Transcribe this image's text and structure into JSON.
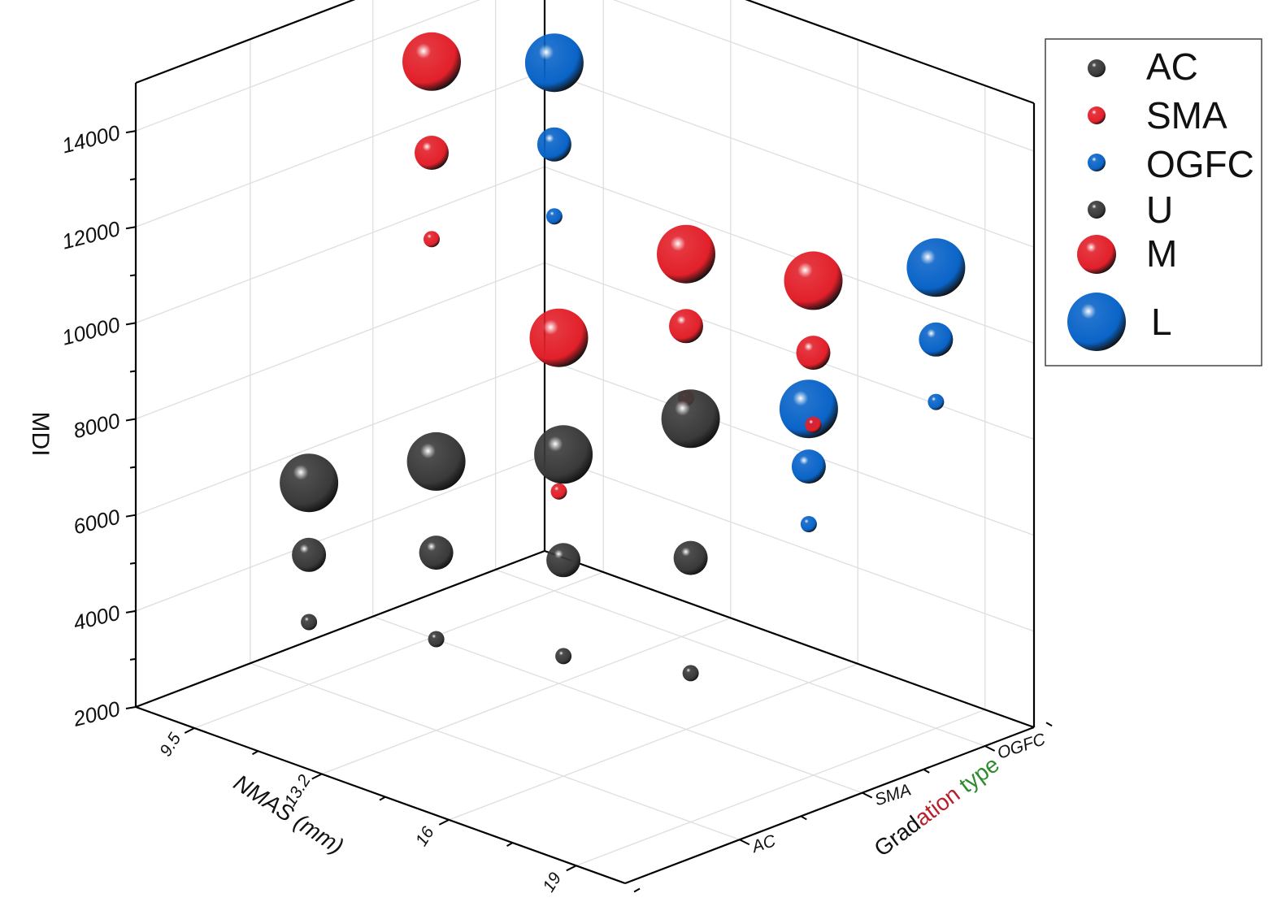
{
  "chart_data": {
    "type": "scatter",
    "subtype": "3d-bubble",
    "axes": {
      "x": {
        "label": "NMAS (mm)",
        "ticks": [
          "9.5",
          "13.2",
          "16",
          "19"
        ]
      },
      "y": {
        "label": "Gradation type",
        "label_parts": [
          {
            "text": "Grad",
            "color": "#111111"
          },
          {
            "text": "ation",
            "color": "#b8202a"
          },
          {
            "text": " ",
            "color": "#111111"
          },
          {
            "text": "type",
            "color": "#2e8b2e"
          }
        ],
        "ticks": [
          "AC",
          "SMA",
          "OGFC"
        ]
      },
      "z": {
        "label": "MDI",
        "ticks": [
          "2000",
          "4000",
          "6000",
          "8000",
          "10000",
          "12000",
          "14000"
        ],
        "range": [
          2000,
          15000
        ]
      }
    },
    "legend": {
      "placement": "right",
      "items": [
        {
          "label": "AC",
          "kind": "color",
          "color": "#3a3a3a"
        },
        {
          "label": "SMA",
          "kind": "color",
          "color": "#e2202a"
        },
        {
          "label": "OGFC",
          "kind": "color",
          "color": "#0a64c8"
        },
        {
          "label": "U",
          "kind": "size",
          "size": "U"
        },
        {
          "label": "M",
          "kind": "size",
          "size": "M"
        },
        {
          "label": "L",
          "kind": "size",
          "size": "L"
        }
      ]
    },
    "colors": {
      "AC": "#3a3a3a",
      "SMA": "#e2202a",
      "OGFC": "#0a64c8"
    },
    "points": [
      {
        "nmas": "9.5",
        "gradation": "AC",
        "size": "U",
        "mdi": 3300
      },
      {
        "nmas": "9.5",
        "gradation": "AC",
        "size": "M",
        "mdi": 4700
      },
      {
        "nmas": "9.5",
        "gradation": "AC",
        "size": "L",
        "mdi": 6200
      },
      {
        "nmas": "13.2",
        "gradation": "AC",
        "size": "U",
        "mdi": 3900
      },
      {
        "nmas": "13.2",
        "gradation": "AC",
        "size": "M",
        "mdi": 5700
      },
      {
        "nmas": "13.2",
        "gradation": "AC",
        "size": "L",
        "mdi": 7600
      },
      {
        "nmas": "13.2",
        "gradation": "SMA",
        "size": "U",
        "mdi": 6000
      },
      {
        "nmas": "13.2",
        "gradation": "SMA",
        "size": "L",
        "mdi": 9200
      },
      {
        "nmas": "16",
        "gradation": "AC",
        "size": "U",
        "mdi": 4500
      },
      {
        "nmas": "16",
        "gradation": "AC",
        "size": "M",
        "mdi": 6500
      },
      {
        "nmas": "16",
        "gradation": "AC",
        "size": "L",
        "mdi": 8700
      },
      {
        "nmas": "16",
        "gradation": "SMA",
        "size": "U",
        "mdi": 8900
      },
      {
        "nmas": "16",
        "gradation": "SMA",
        "size": "M",
        "mdi": 10400
      },
      {
        "nmas": "16",
        "gradation": "SMA",
        "size": "L",
        "mdi": 11900
      },
      {
        "nmas": "16",
        "gradation": "OGFC",
        "size": "U",
        "mdi": 5300
      },
      {
        "nmas": "16",
        "gradation": "OGFC",
        "size": "M",
        "mdi": 6500
      },
      {
        "nmas": "16",
        "gradation": "OGFC",
        "size": "L",
        "mdi": 7700
      },
      {
        "nmas": "19",
        "gradation": "AC",
        "size": "U",
        "mdi": 5100
      },
      {
        "nmas": "19",
        "gradation": "AC",
        "size": "M",
        "mdi": 7500
      },
      {
        "nmas": "19",
        "gradation": "AC",
        "size": "L",
        "mdi": 10400
      },
      {
        "nmas": "19",
        "gradation": "SMA",
        "size": "U",
        "mdi": 9300
      },
      {
        "nmas": "19",
        "gradation": "SMA",
        "size": "M",
        "mdi": 10800
      },
      {
        "nmas": "19",
        "gradation": "SMA",
        "size": "L",
        "mdi": 12300
      },
      {
        "nmas": "19",
        "gradation": "OGFC",
        "size": "U",
        "mdi": 8800
      },
      {
        "nmas": "19",
        "gradation": "OGFC",
        "size": "M",
        "mdi": 10100
      },
      {
        "nmas": "19",
        "gradation": "OGFC",
        "size": "L",
        "mdi": 11600
      },
      {
        "nmas": "9.5",
        "gradation": "SMA",
        "size": "U",
        "mdi": 10300
      },
      {
        "nmas": "9.5",
        "gradation": "SMA",
        "size": "M",
        "mdi": 12100
      },
      {
        "nmas": "9.5",
        "gradation": "SMA",
        "size": "L",
        "mdi": 14000
      },
      {
        "nmas": "9.5",
        "gradation": "OGFC",
        "size": "U",
        "mdi": 9800
      },
      {
        "nmas": "9.5",
        "gradation": "OGFC",
        "size": "M",
        "mdi": 11300
      },
      {
        "nmas": "9.5",
        "gradation": "OGFC",
        "size": "L",
        "mdi": 13000
      }
    ]
  }
}
